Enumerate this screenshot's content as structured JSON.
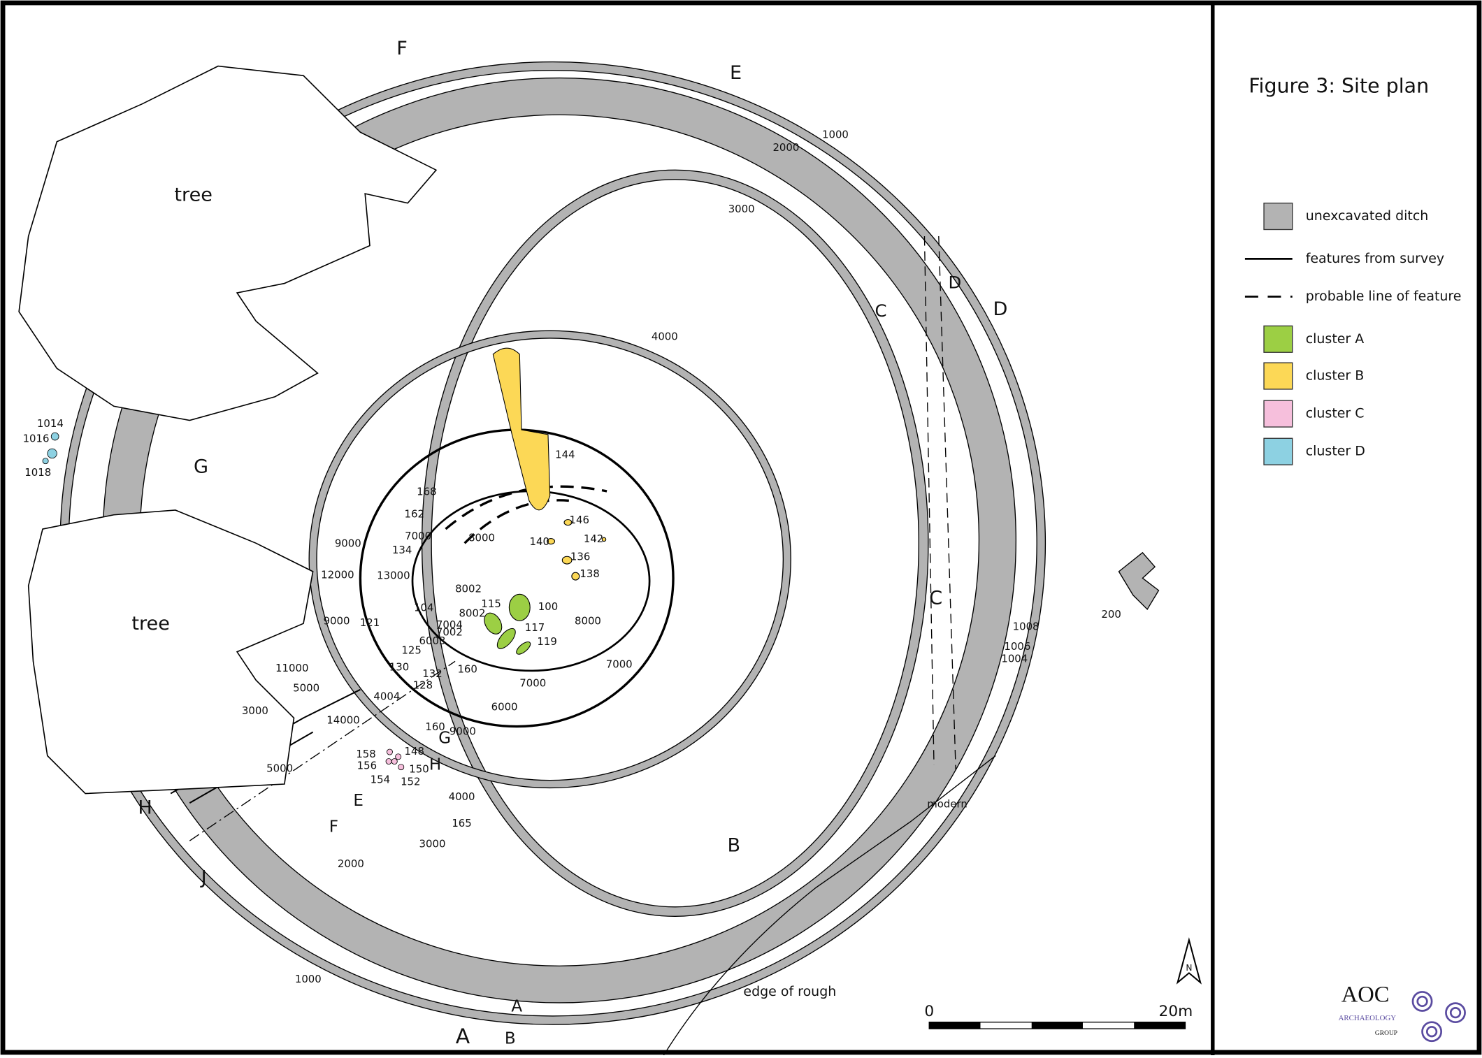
{
  "title": "Figure 3: Site plan",
  "legend": [
    {
      "label": "unexcavated ditch",
      "kind": "swatch",
      "color": "#b3b3b3"
    },
    {
      "label": "features from survey",
      "kind": "line"
    },
    {
      "label": "probable line of feature",
      "kind": "dashed"
    },
    {
      "label": "cluster A",
      "kind": "swatch",
      "color": "#9ccf44"
    },
    {
      "label": "cluster B",
      "kind": "swatch",
      "color": "#fcd856"
    },
    {
      "label": "cluster C",
      "kind": "swatch",
      "color": "#f6bfdc"
    },
    {
      "label": "cluster D",
      "kind": "swatch",
      "color": "#8dd1e2"
    }
  ],
  "map": {
    "labels": [
      "F",
      "E",
      "1000",
      "2000",
      "3000",
      "tree",
      "D",
      "C",
      "D",
      "4000",
      "1014",
      "1016",
      "1018",
      "G",
      "144",
      "168",
      "162",
      "146",
      "7000",
      "8000",
      "140",
      "142",
      "9000",
      "136",
      "134",
      "138",
      "12000",
      "13000",
      "8002",
      "C",
      "115",
      "100",
      "104",
      "9000",
      "8002",
      "7004",
      "8000",
      "tree",
      "117",
      "121",
      "1008",
      "7002",
      "6003",
      "119",
      "125",
      "1006",
      "200",
      "1004",
      "7000",
      "11000",
      "130",
      "132",
      "160",
      "128",
      "7000",
      "5000",
      "4004",
      "6000",
      "3000",
      "14000",
      "9000",
      "160",
      "G",
      "158",
      "148",
      "156",
      "150",
      "H",
      "154",
      "152",
      "5000",
      "4000",
      "modern",
      "H",
      "E",
      "165",
      "F",
      "B",
      "3000",
      "2000",
      "J",
      "1000",
      "edge of rough",
      "A",
      "A",
      "B"
    ],
    "north": "N"
  },
  "scale_bar": {
    "start": "0",
    "end": "20m"
  },
  "logo": {
    "name": "AOC",
    "line1": "ARCHAEOLOGY",
    "line2": "GROUP"
  }
}
